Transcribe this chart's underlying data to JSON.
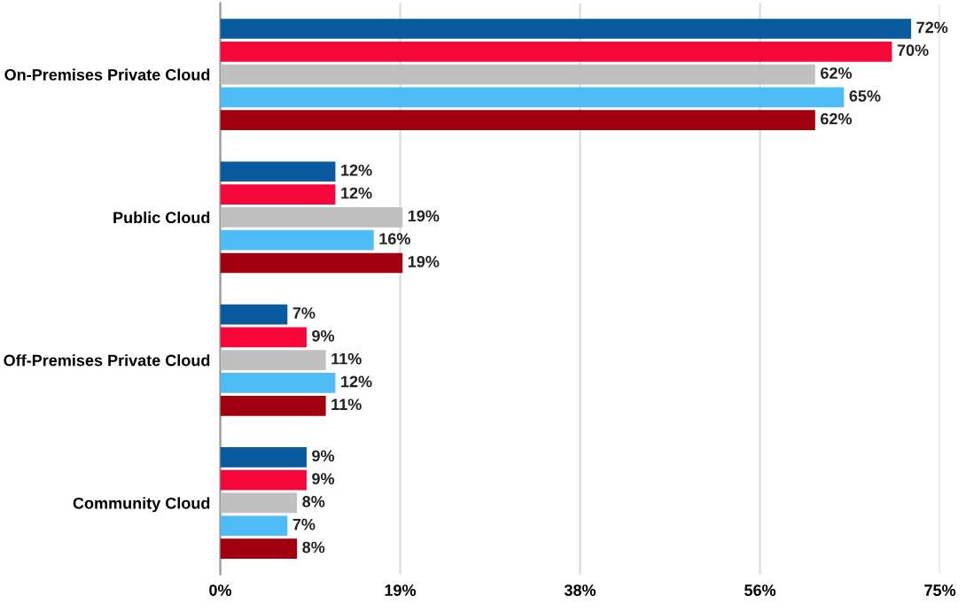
{
  "chart_data": {
    "type": "bar",
    "orientation": "horizontal",
    "categories": [
      "On-Premises Private Cloud",
      "Public Cloud",
      "Off-Premises Private Cloud",
      "Community Cloud"
    ],
    "series": [
      {
        "color": "#0a5aa0",
        "values": [
          72,
          12,
          7,
          9
        ],
        "value_labels": [
          "72%",
          "12%",
          "7%",
          "9%"
        ]
      },
      {
        "color": "#f5073a",
        "values": [
          70,
          12,
          9,
          9
        ],
        "value_labels": [
          "70%",
          "12%",
          "9%",
          "9%"
        ]
      },
      {
        "color": "#c0c0c0",
        "values": [
          62,
          19,
          11,
          8
        ],
        "value_labels": [
          "62%",
          "19%",
          "11%",
          "8%"
        ]
      },
      {
        "color": "#4fbdf5",
        "values": [
          65,
          16,
          12,
          7
        ],
        "value_labels": [
          "65%",
          "16%",
          "12%",
          "7%"
        ]
      },
      {
        "color": "#a0000f",
        "values": [
          62,
          19,
          11,
          8
        ],
        "value_labels": [
          "62%",
          "19%",
          "11%",
          "8%"
        ]
      }
    ],
    "xlim": [
      0,
      75
    ],
    "xticks": [
      {
        "value": 0,
        "label": "0%"
      },
      {
        "value": 18.75,
        "label": "19%"
      },
      {
        "value": 37.5,
        "label": "38%"
      },
      {
        "value": 56.25,
        "label": "56%"
      },
      {
        "value": 75,
        "label": "75%"
      }
    ],
    "grid": "x",
    "legend": false
  }
}
